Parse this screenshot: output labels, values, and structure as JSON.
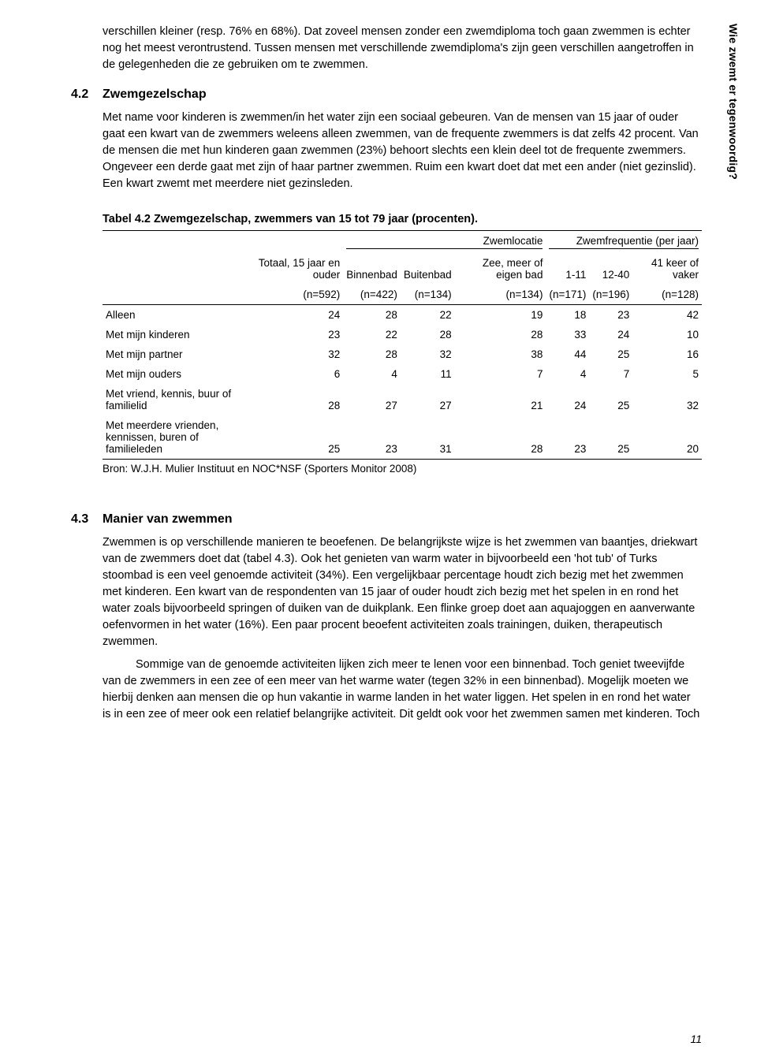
{
  "side_title": "Wie zwemt er tegenwoordig?",
  "page_number": "11",
  "intro_para": "verschillen kleiner (resp. 76% en 68%). Dat zoveel mensen zonder een zwemdiploma toch gaan zwemmen is echter nog het meest verontrustend. Tussen mensen met verschillende zwemdiploma's zijn geen verschillen aangetroffen in de gelegenheden die ze gebruiken om te zwemmen.",
  "sec42": {
    "num": "4.2",
    "title": "Zwemgezelschap",
    "para": "Met name voor kinderen is zwemmen/in het water zijn een sociaal gebeuren. Van de mensen van 15 jaar of ouder gaat een kwart van de zwemmers weleens alleen zwemmen, van de frequente zwemmers is dat zelfs 42 procent. Van de mensen die met hun kinderen gaan zwemmen (23%) behoort slechts een klein deel tot de frequente zwemmers. Ongeveer een derde gaat met zijn of haar partner zwemmen. Ruim een kwart doet dat met een ander (niet gezinslid). Een kwart zwemt met meerdere niet gezinsleden."
  },
  "table": {
    "title": "Tabel 4.2 Zwemgezelschap, zwemmers van 15 tot 79 jaar (procenten).",
    "group_headers": {
      "loc": "Zwemlocatie",
      "freq": "Zwemfrequentie (per jaar)"
    },
    "col_headers": {
      "c0": "",
      "c1": "Totaal, 15 jaar en ouder",
      "c2": "Binnenbad",
      "c3": "Buitenbad",
      "c4": "Zee, meer of eigen bad",
      "c5": "1-11",
      "c6": "12-40",
      "c7": "41 keer of vaker"
    },
    "n_row": {
      "c1": "(n=592)",
      "c2": "(n=422)",
      "c3": "(n=134)",
      "c4": "(n=134)",
      "c5": "(n=171)",
      "c6": "(n=196)",
      "c7": "(n=128)"
    },
    "rows": [
      {
        "label": "Alleen",
        "v": [
          "24",
          "28",
          "22",
          "19",
          "18",
          "23",
          "42"
        ]
      },
      {
        "label": "Met mijn kinderen",
        "v": [
          "23",
          "22",
          "28",
          "28",
          "33",
          "24",
          "10"
        ]
      },
      {
        "label": "Met mijn partner",
        "v": [
          "32",
          "28",
          "32",
          "38",
          "44",
          "25",
          "16"
        ]
      },
      {
        "label": "Met mijn ouders",
        "v": [
          "6",
          "4",
          "11",
          "7",
          "4",
          "7",
          "5"
        ]
      },
      {
        "label": "Met vriend, kennis, buur of familielid",
        "v": [
          "28",
          "27",
          "27",
          "21",
          "24",
          "25",
          "32"
        ]
      },
      {
        "label": "Met meerdere vrienden, kennissen, buren of familieleden",
        "v": [
          "25",
          "23",
          "31",
          "28",
          "23",
          "25",
          "20"
        ]
      }
    ],
    "source": "Bron: W.J.H. Mulier Instituut en NOC*NSF (Sporters Monitor 2008)"
  },
  "sec43": {
    "num": "4.3",
    "title": "Manier van zwemmen",
    "para1": "Zwemmen is op verschillende manieren te beoefenen. De belangrijkste wijze is het zwemmen van baantjes, driekwart van de zwemmers doet dat (tabel 4.3). Ook het genieten van warm water in bijvoorbeeld een 'hot tub' of Turks stoombad is een veel genoemde activiteit (34%). Een vergelijkbaar percentage houdt zich bezig met het zwemmen met kinderen. Een kwart van de respondenten van 15 jaar of ouder houdt zich bezig met het spelen in en rond het water zoals bijvoorbeeld springen of duiken van de duikplank. Een flinke groep doet aan aquajoggen en aanverwante oefenvormen in het water (16%). Een paar procent beoefent activiteiten zoals trainingen, duiken, therapeutisch zwemmen.",
    "para2": "Sommige van de genoemde activiteiten lijken zich meer te lenen voor een binnenbad. Toch geniet tweevijfde van de zwemmers in een zee of een meer van het warme water (tegen 32% in een binnenbad). Mogelijk moeten we hierbij denken aan mensen die op hun vakantie in warme landen in het water liggen. Het spelen in en rond het water is in een zee of meer ook een relatief belangrijke activiteit. Dit geldt ook voor het zwemmen samen met kinderen. Toch"
  }
}
